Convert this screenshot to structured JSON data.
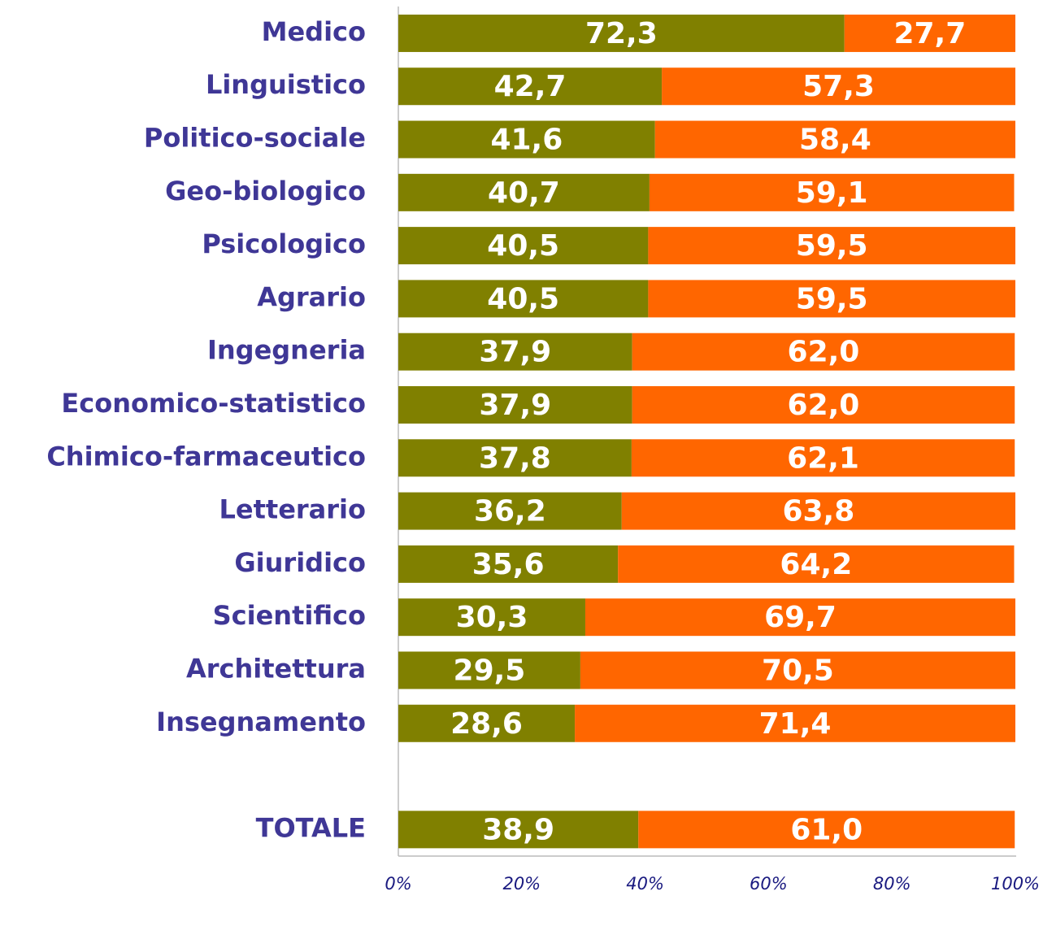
{
  "chart_data": {
    "type": "stacked-barh",
    "categories": [
      "Medico",
      "Linguistico",
      "Politico-sociale",
      "Geo-biologico",
      "Psicologico",
      "Agrario",
      "Ingegneria",
      "Economico-statistico",
      "Chimico-farmaceutico",
      "Letterario",
      "Giuridico",
      "Scientifico",
      "Architettura",
      "Insegnamento",
      null,
      "TOTALE"
    ],
    "series": [
      {
        "color": "#808000",
        "values": [
          72.3,
          42.7,
          41.6,
          40.7,
          40.5,
          40.5,
          37.9,
          37.9,
          37.8,
          36.2,
          35.6,
          30.3,
          29.5,
          28.6,
          null,
          38.9
        ],
        "value_labels": [
          "72,3",
          "42,7",
          "41,6",
          "40,7",
          "40,5",
          "40,5",
          "37,9",
          "37,9",
          "37,8",
          "36,2",
          "35,6",
          "30,3",
          "29,5",
          "28,6",
          null,
          "38,9"
        ]
      },
      {
        "color": "#ff6600",
        "values": [
          27.7,
          57.3,
          58.4,
          59.1,
          59.5,
          59.5,
          62.0,
          62.0,
          62.1,
          63.8,
          64.2,
          69.7,
          70.5,
          71.4,
          null,
          61.0
        ],
        "value_labels": [
          "27,7",
          "57,3",
          "58,4",
          "59,1",
          "59,5",
          "59,5",
          "62,0",
          "62,0",
          "62,1",
          "63,8",
          "64,2",
          "69,7",
          "70,5",
          "71,4",
          null,
          "61,0"
        ]
      }
    ],
    "xlim": [
      0,
      100
    ],
    "xticks": [
      {
        "value": 0,
        "label": "0%"
      },
      {
        "value": 20,
        "label": "20%"
      },
      {
        "value": 40,
        "label": "40%"
      },
      {
        "value": 60,
        "label": "60%"
      },
      {
        "value": 80,
        "label": "80%"
      },
      {
        "value": 100,
        "label": "100%"
      }
    ],
    "grid": false
  }
}
